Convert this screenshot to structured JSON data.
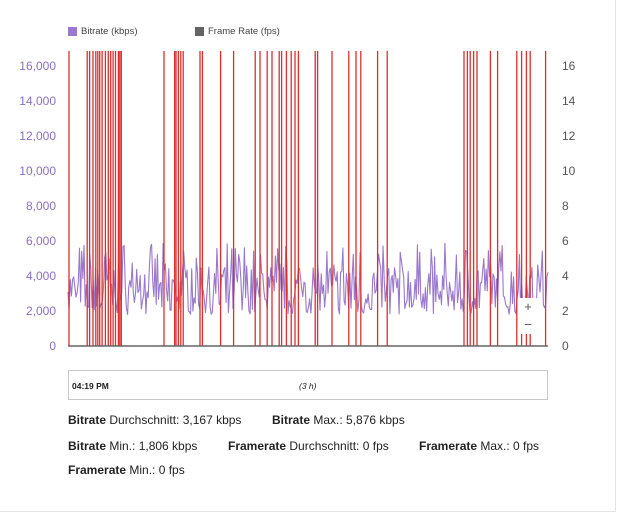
{
  "legend": [
    {
      "label": "Bitrate (kbps)",
      "color": "#9a78cc"
    },
    {
      "label": "Frame Rate (fps)",
      "color": "#646464"
    }
  ],
  "chart_data": {
    "type": "line",
    "title": "",
    "xlabel": "",
    "y_left": {
      "label": "",
      "ticks": [
        "0",
        "2,000",
        "4,000",
        "6,000",
        "8,000",
        "10,000",
        "12,000",
        "14,000",
        "16,000"
      ],
      "range": [
        0,
        17500
      ]
    },
    "y_right": {
      "label": "",
      "ticks": [
        "0",
        "2",
        "4",
        "6",
        "8",
        "10",
        "12",
        "14",
        "16"
      ],
      "range": [
        0,
        17.5
      ]
    },
    "grid": false,
    "legend_position": "top-left",
    "series": [
      {
        "name": "Bitrate (kbps)",
        "color": "#9a78cc",
        "axis": "left",
        "approx_min": 1806,
        "approx_max": 5876,
        "approx_mean": 3167,
        "points": 420
      },
      {
        "name": "Frame Rate (fps)",
        "color": "#646464",
        "axis": "right",
        "value": 0
      }
    ],
    "event_markers": {
      "color": "#dc2f2f",
      "x_fraction": [
        0.002,
        0.04,
        0.045,
        0.052,
        0.058,
        0.062,
        0.066,
        0.071,
        0.078,
        0.084,
        0.089,
        0.094,
        0.099,
        0.105,
        0.108,
        0.111,
        0.2,
        0.222,
        0.225,
        0.23,
        0.235,
        0.24,
        0.275,
        0.28,
        0.318,
        0.345,
        0.39,
        0.4,
        0.415,
        0.425,
        0.44,
        0.445,
        0.455,
        0.465,
        0.473,
        0.48,
        0.515,
        0.52,
        0.55,
        0.585,
        0.6,
        0.61,
        0.645,
        0.665,
        0.825,
        0.832,
        0.838,
        0.845,
        0.852,
        0.88,
        0.895,
        0.935,
        0.945,
        0.955,
        0.963,
        0.995
      ]
    }
  },
  "navigator": {
    "start_label": "04:19 PM",
    "duration_label": "(3 h)"
  },
  "zoom": {
    "in_label": "+",
    "out_label": "−"
  },
  "stats": {
    "bitrate_avg": {
      "key": "Bitrate",
      "text": " Durchschnitt: 3,167 kbps"
    },
    "bitrate_max": {
      "key": "Bitrate",
      "text": " Max.: 5,876 kbps"
    },
    "bitrate_min": {
      "key": "Bitrate",
      "text": " Min.: 1,806 kbps"
    },
    "framerate_avg": {
      "key": "Framerate",
      "text": " Durchschnitt: 0 fps"
    },
    "framerate_max": {
      "key": "Framerate",
      "text": " Max.: 0 fps"
    },
    "framerate_min": {
      "key": "Framerate",
      "text": " Min.: 0 fps"
    }
  }
}
